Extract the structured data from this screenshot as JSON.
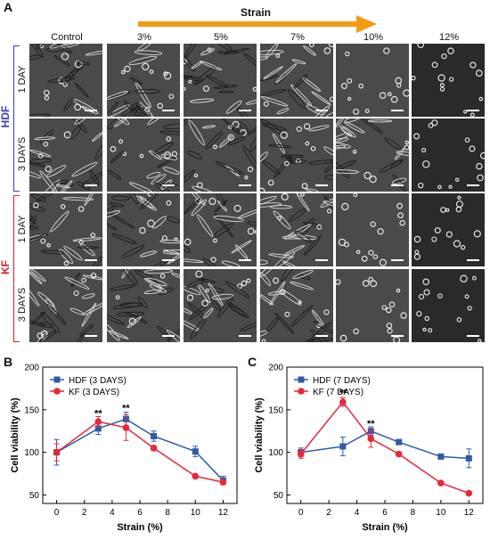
{
  "panel_labels": {
    "a": "A",
    "b": "B",
    "c": "C"
  },
  "micrograph_grid": {
    "strain_title": "Strain",
    "columns": [
      "Control",
      "3%",
      "5%",
      "7%",
      "10%",
      "12%"
    ],
    "groups": [
      {
        "name": "HDF",
        "color": "#3a3ab0",
        "rows": [
          "1 DAY",
          "3 DAYS"
        ]
      },
      {
        "name": "KF",
        "color": "#d81e2c",
        "rows": [
          "1 DAY",
          "3 DAYS"
        ]
      }
    ],
    "arrow_color": "#f39c12"
  },
  "chart_data": [
    {
      "type": "line",
      "panel": "B",
      "xlabel": "Strain (%)",
      "ylabel": "Cell viability (%)",
      "xlim": [
        -1,
        13
      ],
      "ylim": [
        40,
        200
      ],
      "xticks": [
        0,
        2,
        4,
        6,
        8,
        10,
        12
      ],
      "yticks": [
        50,
        100,
        150,
        200
      ],
      "legend_position": "top-left",
      "series": [
        {
          "name": "HDF (3 DAYS)",
          "color": "#2e5aa8",
          "marker": "square",
          "x": [
            0,
            3,
            5,
            7,
            10,
            12
          ],
          "y": [
            100,
            128,
            139,
            119,
            101,
            67
          ],
          "err": [
            15,
            7,
            8,
            6,
            6,
            5
          ]
        },
        {
          "name": "KF (3 DAYS)",
          "color": "#e8283b",
          "marker": "circle",
          "x": [
            0,
            3,
            5,
            7,
            10,
            12
          ],
          "y": [
            100,
            136,
            129,
            105,
            72,
            65
          ],
          "err": [
            10,
            6,
            15,
            3,
            2,
            3
          ]
        }
      ],
      "annotations": [
        {
          "text": "**",
          "x": 3,
          "y": 142
        },
        {
          "text": "**",
          "x": 5,
          "y": 148
        }
      ]
    },
    {
      "type": "line",
      "panel": "C",
      "xlabel": "Strain (%)",
      "ylabel": "Cell viability (%)",
      "xlim": [
        -1,
        13
      ],
      "ylim": [
        40,
        200
      ],
      "xticks": [
        0,
        2,
        4,
        6,
        8,
        10,
        12
      ],
      "yticks": [
        50,
        100,
        150,
        200
      ],
      "legend_position": "top-left",
      "series": [
        {
          "name": "HDF (7 DAYS)",
          "color": "#2e5aa8",
          "marker": "square",
          "x": [
            0,
            3,
            5,
            7,
            10,
            12
          ],
          "y": [
            100,
            107,
            125,
            112,
            95,
            93
          ],
          "err": [
            5,
            11,
            5,
            3,
            1,
            11
          ]
        },
        {
          "name": "KF (7 DAYS)",
          "color": "#e8283b",
          "marker": "circle",
          "x": [
            0,
            3,
            5,
            7,
            10,
            12
          ],
          "y": [
            98,
            159,
            116,
            98,
            64,
            52
          ],
          "err": [
            5,
            5,
            10,
            2,
            1,
            1
          ]
        }
      ],
      "annotations": [
        {
          "text": "**",
          "x": 3,
          "y": 166
        },
        {
          "text": "**",
          "x": 5,
          "y": 130
        }
      ]
    }
  ]
}
